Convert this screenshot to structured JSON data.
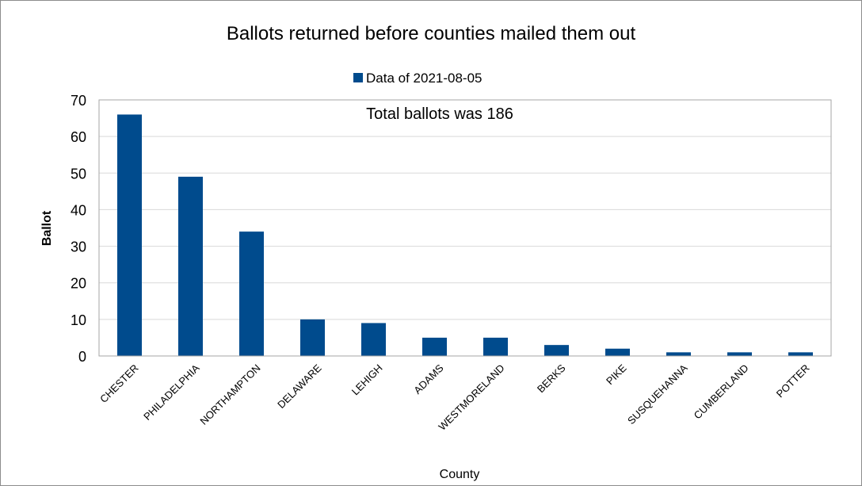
{
  "chart_data": {
    "type": "bar",
    "title": "Ballots returned before counties mailed them out",
    "annotation": "Total ballots was 186",
    "xlabel": "County",
    "ylabel": "Ballot",
    "ylim": [
      0,
      70
    ],
    "yticks": [
      0,
      10,
      20,
      30,
      40,
      50,
      60,
      70
    ],
    "grid": true,
    "legend_position": "top",
    "categories": [
      "CHESTER",
      "PHILADELPHIA",
      "NORTHAMPTON",
      "DELAWARE",
      "LEHIGH",
      "ADAMS",
      "WESTMORELAND",
      "BERKS",
      "PIKE",
      "SUSQUEHANNA",
      "CUMBERLAND",
      "POTTER"
    ],
    "series": [
      {
        "name": "Data of 2021-08-05",
        "color": "#004b8d",
        "values": [
          66,
          49,
          34,
          10,
          9,
          5,
          5,
          3,
          2,
          1,
          1,
          1
        ]
      }
    ]
  }
}
